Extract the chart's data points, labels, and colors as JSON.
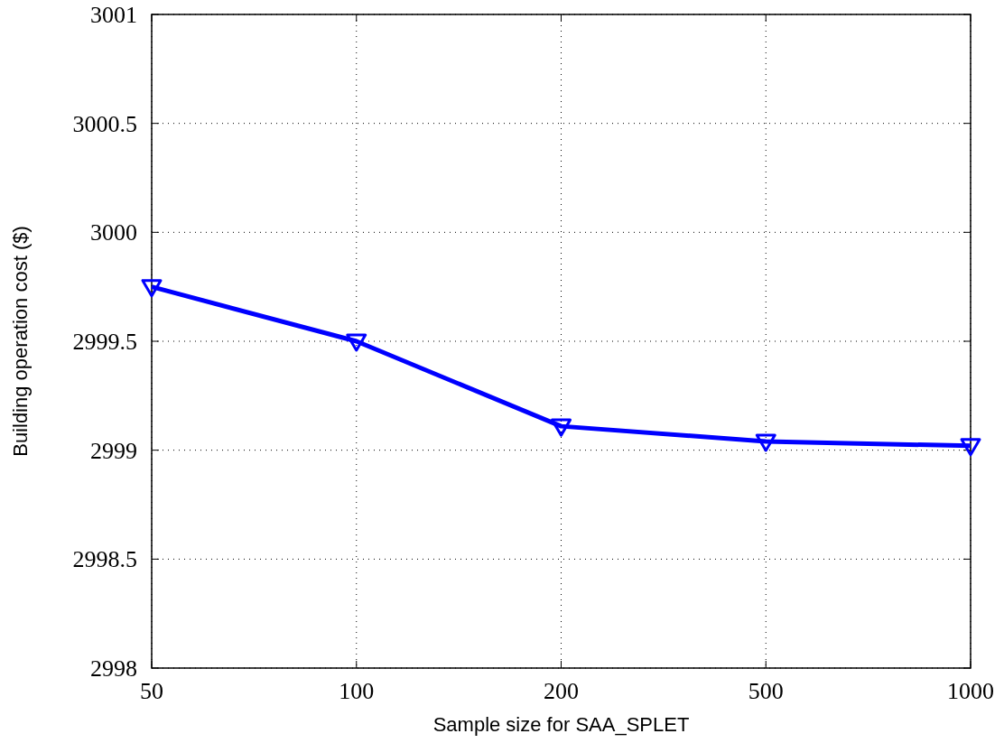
{
  "chart_data": {
    "type": "line",
    "xlabel": "Sample size for SAA_SPLET",
    "ylabel": "Building operation cost ($)",
    "categories": [
      "50",
      "100",
      "200",
      "500",
      "1000"
    ],
    "series": [
      {
        "color": "#0000ff",
        "values": [
          2999.75,
          2999.5,
          2999.11,
          2999.04,
          2999.02
        ]
      }
    ],
    "ylim": [
      2998,
      3001
    ],
    "yticks": [
      2998,
      2998.5,
      2999,
      2999.5,
      3000,
      3000.5,
      3001
    ],
    "grid": true,
    "marker": "triangle",
    "line_style": "solid"
  }
}
